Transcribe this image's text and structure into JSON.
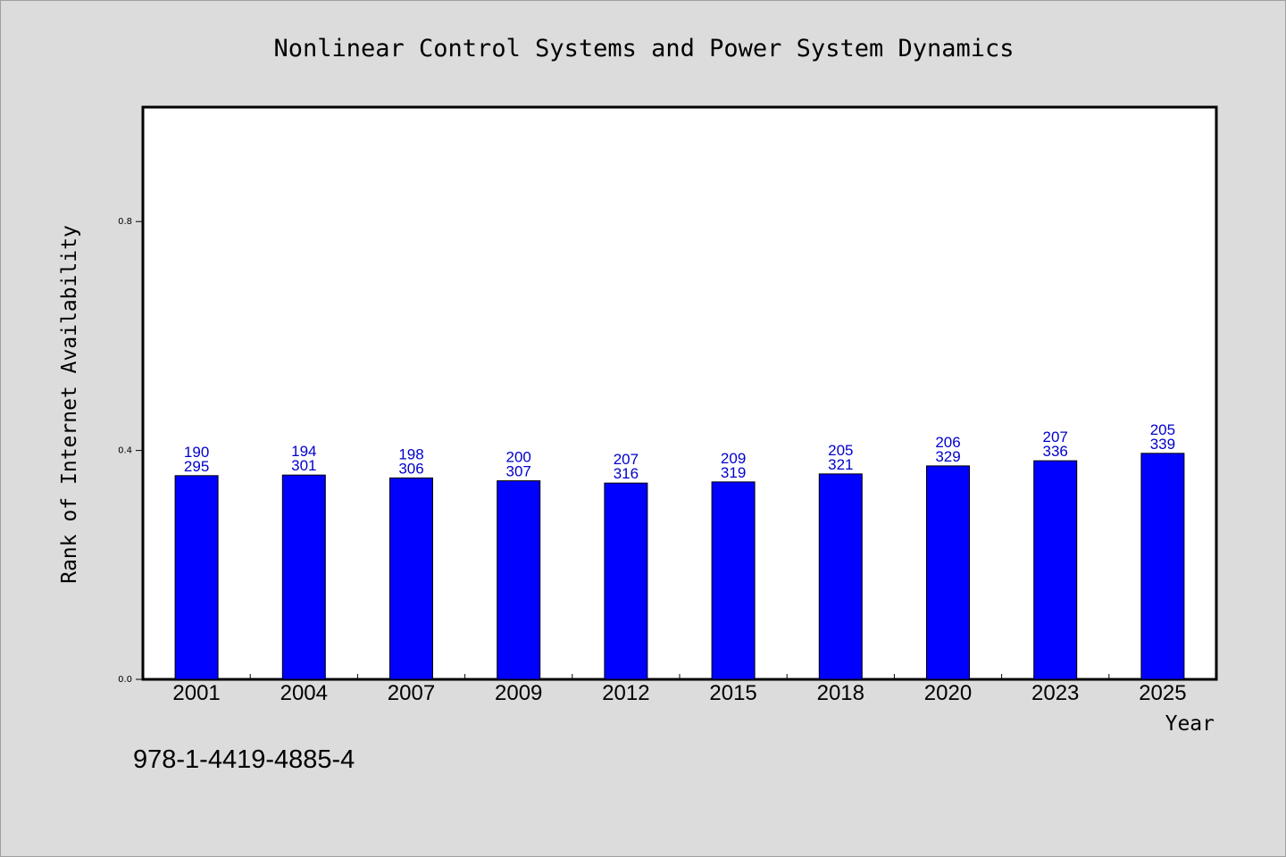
{
  "chart_data": {
    "type": "bar",
    "title": "Nonlinear Control Systems and Power System Dynamics",
    "xlabel": "Year",
    "ylabel": "Rank of Internet Availability",
    "ylim": [
      0,
      1.0
    ],
    "yticks": [
      0.0,
      0.4,
      0.8
    ],
    "ytick_labels": [
      "0.0",
      "0.4",
      "0.8"
    ],
    "grid": false,
    "categories": [
      "2001",
      "2004",
      "2007",
      "2009",
      "2012",
      "2015",
      "2018",
      "2020",
      "2023",
      "2025"
    ],
    "values": [
      0.356,
      0.357,
      0.352,
      0.347,
      0.343,
      0.345,
      0.359,
      0.373,
      0.382,
      0.395
    ],
    "label_top": [
      "190",
      "194",
      "198",
      "200",
      "207",
      "209",
      "205",
      "206",
      "207",
      "205"
    ],
    "label_bottom": [
      "295",
      "301",
      "306",
      "307",
      "316",
      "319",
      "321",
      "329",
      "336",
      "339"
    ],
    "bar_color": "#0000ff",
    "label_color": "#0000cc"
  },
  "footer": {
    "isbn": "978-1-4419-4885-4"
  }
}
